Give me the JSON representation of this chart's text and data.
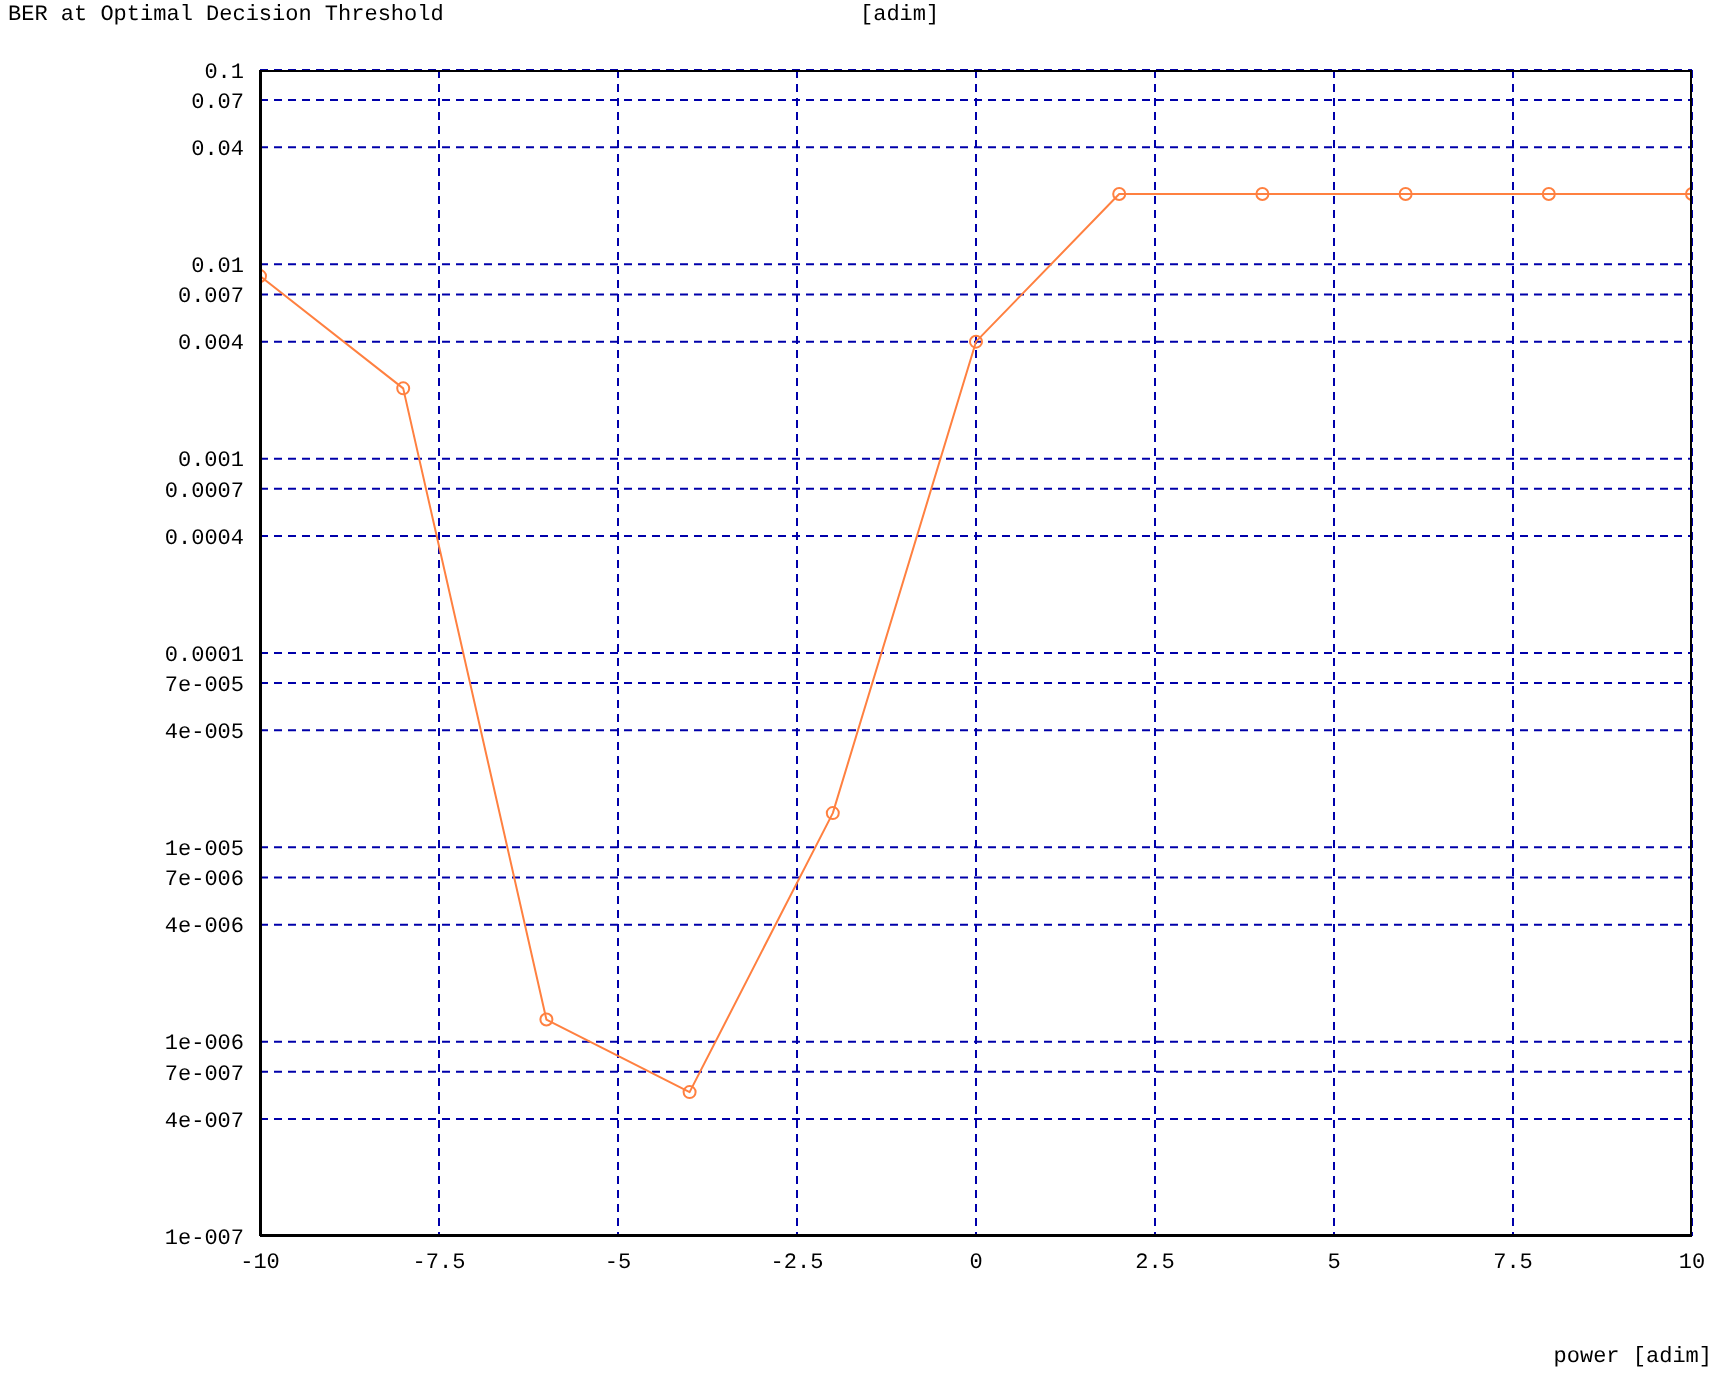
{
  "chart_data": {
    "type": "line",
    "title": "BER at Optimal Decision Threshold",
    "ylabel": "[adim]",
    "xlabel": "power [adim]",
    "x": [
      -10,
      -8,
      -6,
      -4,
      -2,
      0,
      2,
      4,
      6,
      8,
      10
    ],
    "series": [
      {
        "color": "#ff8040",
        "values": [
          0.0087,
          0.0023,
          1.3e-06,
          5.5e-07,
          1.5e-05,
          0.004,
          0.023,
          0.023,
          0.023,
          0.023,
          0.023
        ]
      }
    ],
    "log": "y",
    "marker": "circle",
    "line_style": "solid",
    "grid": true,
    "xlim": [
      -10,
      10
    ],
    "xticks": [
      -10,
      -7.5,
      -5,
      -2.5,
      0,
      2.5,
      5,
      7.5,
      10
    ],
    "ylim": [
      1e-07,
      0.1
    ],
    "yticks": [
      0.1,
      0.07,
      0.04,
      0.01,
      0.007,
      0.004,
      0.001,
      0.0007,
      0.0004,
      0.0001,
      {
        "value": 7e-05,
        "label": "7e-005"
      },
      {
        "value": 4e-05,
        "label": "4e-005"
      },
      {
        "value": 1e-05,
        "label": "1e-005"
      },
      {
        "value": 7e-06,
        "label": "7e-006"
      },
      {
        "value": 4e-06,
        "label": "4e-006"
      },
      {
        "value": 1e-06,
        "label": "1e-006"
      },
      {
        "value": 7e-07,
        "label": "7e-007"
      },
      {
        "value": 4e-07,
        "label": "4e-007"
      },
      {
        "value": 1e-07,
        "label": "1e-007"
      }
    ]
  }
}
